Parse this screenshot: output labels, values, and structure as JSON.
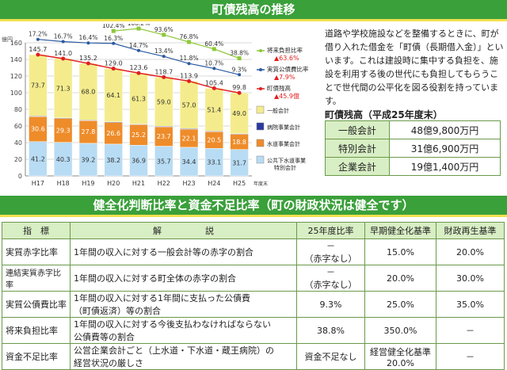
{
  "section1": {
    "title": "町債残高の推移"
  },
  "chart_data": {
    "type": "bar",
    "categories": [
      "H17",
      "H18",
      "H19",
      "H20",
      "H21",
      "H22",
      "H23",
      "H24",
      "H25"
    ],
    "yunit": "億円",
    "x_suffix": "年度末",
    "ylim": [
      0,
      160
    ],
    "yticks": [
      "0",
      "20",
      "40",
      "60",
      "80",
      "100",
      "120",
      "140",
      "160"
    ],
    "series": [
      {
        "name": "公共下水道事業特別会計",
        "color": "#b8dcf4",
        "values": [
          41.2,
          40.3,
          39.2,
          38.2,
          36.9,
          35.7,
          34.4,
          33.1,
          31.7
        ]
      },
      {
        "name": "水道事業会計",
        "color": "#ee8c2a",
        "values": [
          30.6,
          29.3,
          27.8,
          26.6,
          25.2,
          23.7,
          22.1,
          20.5,
          18.8
        ]
      },
      {
        "name": "病院事業会計",
        "color": "#2a3aa0",
        "values": [
          0.2,
          0.2,
          0.2,
          0.2,
          0.2,
          0.3,
          0.4,
          0.3,
          0.3
        ]
      },
      {
        "name": "一般会計",
        "color": "#f4ec8c",
        "values": [
          73.7,
          71.3,
          68.0,
          64.1,
          61.3,
          59.0,
          57.0,
          51.4,
          49.0
        ]
      }
    ],
    "totals": [
      "145.7",
      "141.0",
      "135.2",
      "129.0",
      "123.6",
      "118.7",
      "113.9",
      "105.4",
      "99.8"
    ],
    "value_labels": [
      [
        "41.2",
        "40.3",
        "39.2",
        "38.2",
        "36.9",
        "35.7",
        "34.4",
        "33.1",
        "31.7"
      ],
      [
        "30.6",
        "29.3",
        "27.8",
        "26.6",
        "25.2",
        "23.7",
        "22.1",
        "20.5",
        "18.8"
      ],
      [
        "0.2",
        "0.2",
        "0.2",
        "0.2",
        "0.2",
        "0.3",
        "0.4",
        "0.3",
        "0.3"
      ],
      [
        "73.7",
        "71.3",
        "68.0",
        "64.1",
        "61.3",
        "59.0",
        "57.0",
        "51.4",
        "49.0"
      ]
    ],
    "lines": [
      {
        "name": "町債残高",
        "color": "#e02020",
        "values": [
          145.7,
          141.0,
          135.2,
          129.0,
          123.6,
          118.7,
          113.9,
          105.4,
          99.8
        ]
      },
      {
        "name": "実質公債費比率",
        "color": "#2a5aa0",
        "unit": "%",
        "values": [
          17.2,
          16.7,
          16.4,
          16.3,
          14.7,
          13.4,
          11.8,
          10.7,
          9.3
        ],
        "labels": [
          "17.2%",
          "16.7%",
          "16.4%",
          "16.3%",
          "14.7%",
          "13.4%",
          "11.8%",
          "10.7%",
          "9.3%"
        ]
      },
      {
        "name": "将来負担比率",
        "color": "#8ec83a",
        "unit": "%",
        "values": [
          null,
          null,
          null,
          102.4,
          108.2,
          93.6,
          76.8,
          60.4,
          38.8
        ],
        "labels": [
          "",
          "",
          "",
          "102.4%",
          "108.2%",
          "93.6%",
          "76.8%",
          "60.4%",
          "38.8%"
        ]
      }
    ],
    "legend": [
      {
        "name": "将来負担比率",
        "change": "▲63.6%",
        "color": "#8ec83a"
      },
      {
        "name": "実質公債費比率",
        "change": "▲7.9%",
        "color": "#2a5aa0"
      },
      {
        "name": "町債残高",
        "change": "▲45.9億",
        "color": "#e02020"
      },
      {
        "name": "一般会計",
        "color": "#f4ec8c"
      },
      {
        "name": "病院事業会計",
        "color": "#2a3aa0"
      },
      {
        "name": "水道事業会計",
        "color": "#ee8c2a"
      },
      {
        "name": "公共下水道事業",
        "name2": "特別会計",
        "color": "#b8dcf4"
      }
    ]
  },
  "description": "道路や学校施設などを整備するときに、町が借り入れた借金を「町債（長期借入金）」といいます。これは建設時に集中する負担を、施設を利用する後の世代にも負担してもらうことで世代間の公平化を図る役割を持っています。",
  "debt": {
    "title": "町債残高（平成25年度末）",
    "rows": [
      {
        "label": "一般会計",
        "value": "48億9,800万円"
      },
      {
        "label": "特別会計",
        "value": "31億6,900万円"
      },
      {
        "label": "企業会計",
        "value": "19億1,400万円"
      }
    ]
  },
  "section2": {
    "title": "健全化判断比率と資金不足比率（町の財政状況は健全です）"
  },
  "ratios": {
    "headers": [
      "指　標",
      "解　　　　　説",
      "25年度比率",
      "早期健全化基準",
      "財政再生基準"
    ],
    "rows": [
      {
        "name": "実質赤字比率",
        "desc": "1年間の収入に対する一般会計等の赤字の割合",
        "rate": "－\n（赤字なし）",
        "early": "15.0%",
        "rebuild": "20.0%"
      },
      {
        "name": "連結実質赤字比率",
        "desc": "1年間の収入に対する町全体の赤字の割合",
        "rate": "－\n（赤字なし）",
        "early": "20.0%",
        "rebuild": "30.0%"
      },
      {
        "name": "実質公債費比率",
        "desc": "1年間の収入に対する1年間に支払った公債費\n（町債返済）等の割合",
        "rate": "9.3%",
        "early": "25.0%",
        "rebuild": "35.0%"
      },
      {
        "name": "将来負担比率",
        "desc": "1年間の収入に対する今後支払わなければならない\n公債費等の割合",
        "rate": "38.8%",
        "early": "350.0%",
        "rebuild": "－"
      },
      {
        "name": "資金不足比率",
        "desc": "公営企業会計ごと（上水道・下水道・蔵王病院）の\n経営状況の厳しさ",
        "rate": "資金不足なし",
        "early": "経営健全化基準\n20.0%",
        "rebuild": "－"
      }
    ]
  }
}
